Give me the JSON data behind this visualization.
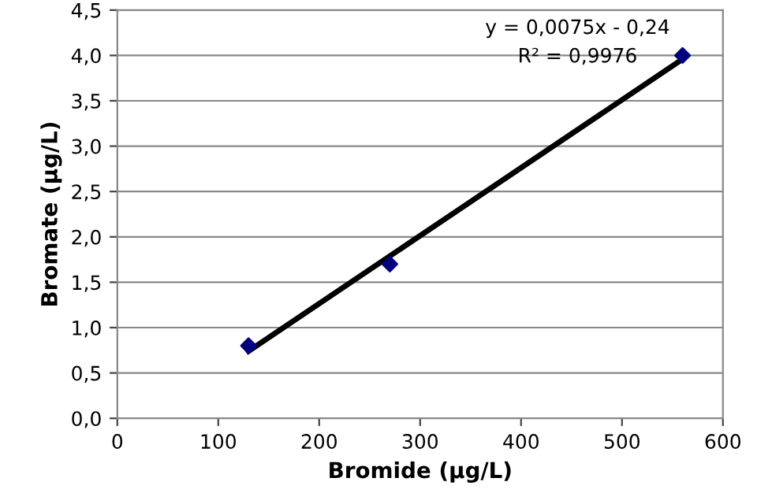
{
  "chart_data": {
    "type": "scatter",
    "xlabel": "Bromide (µg/L)",
    "ylabel": "Bromate (µg/L)",
    "series": [
      {
        "color": "#000080",
        "marker": "diamond",
        "x": [
          130,
          270,
          560
        ],
        "values": [
          0.8,
          1.7,
          4.0
        ]
      },
      {
        "type": "line",
        "color": "#000000",
        "marker": "none",
        "line_style": "solid",
        "x": [
          130,
          560
        ],
        "values": [
          0.74,
          3.96
        ]
      }
    ],
    "annotations": [
      "y = 0,0075x - 0,24",
      "R² = 0,9976"
    ],
    "xlim": [
      0,
      600
    ],
    "xticks": [
      0,
      100,
      200,
      300,
      400,
      500,
      600
    ],
    "ylim": [
      0,
      4.5
    ],
    "yticks": [
      {
        "value": 0,
        "label": "0,0"
      },
      {
        "value": 0.5,
        "label": "0,5"
      },
      {
        "value": 1,
        "label": "1,0"
      },
      {
        "value": 1.5,
        "label": "1,5"
      },
      {
        "value": 2,
        "label": "2,0"
      },
      {
        "value": 2.5,
        "label": "2,5"
      },
      {
        "value": 3,
        "label": "3,0"
      },
      {
        "value": 3.5,
        "label": "3,5"
      },
      {
        "value": 4,
        "label": "4,0"
      },
      {
        "value": 4.5,
        "label": "4,5"
      }
    ],
    "grid": "y",
    "legend": false
  }
}
